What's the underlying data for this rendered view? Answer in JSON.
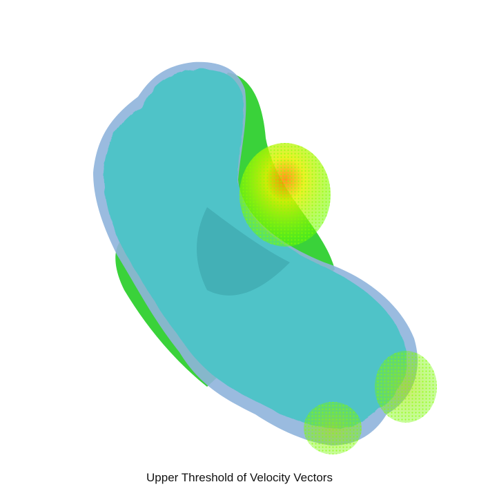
{
  "caption": "Upper Threshold of Velocity Vectors",
  "colors": {
    "outer_surface": "#8fb4dc",
    "inner_surface": "#4fc3c8",
    "side_surface": "#3ad23a",
    "vectors_low": "#66ff00",
    "vectors_high": "#ff9900"
  }
}
